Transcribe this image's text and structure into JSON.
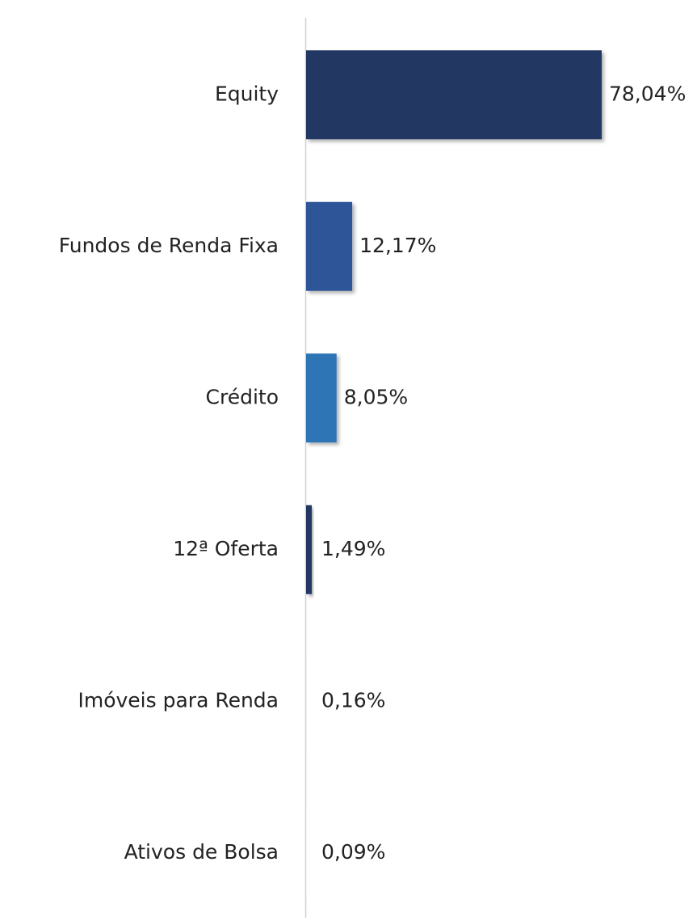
{
  "chart_data": {
    "type": "barh",
    "categories": [
      "Equity",
      "Fundos de Renda Fixa",
      "Crédito",
      "12ª Oferta",
      "Imóveis para Renda",
      "Ativos de Bolsa"
    ],
    "values": [
      78.04,
      12.17,
      8.05,
      1.49,
      0.16,
      0.09
    ],
    "value_labels": [
      "78,04%",
      "12,17%",
      "8,05%",
      "1,49%",
      "0,16%",
      "0,09%"
    ],
    "colors": [
      "#203864",
      "#2f5597",
      "#2e75b6",
      "#203864",
      "#e9ecf1",
      "#eef0f3"
    ]
  }
}
